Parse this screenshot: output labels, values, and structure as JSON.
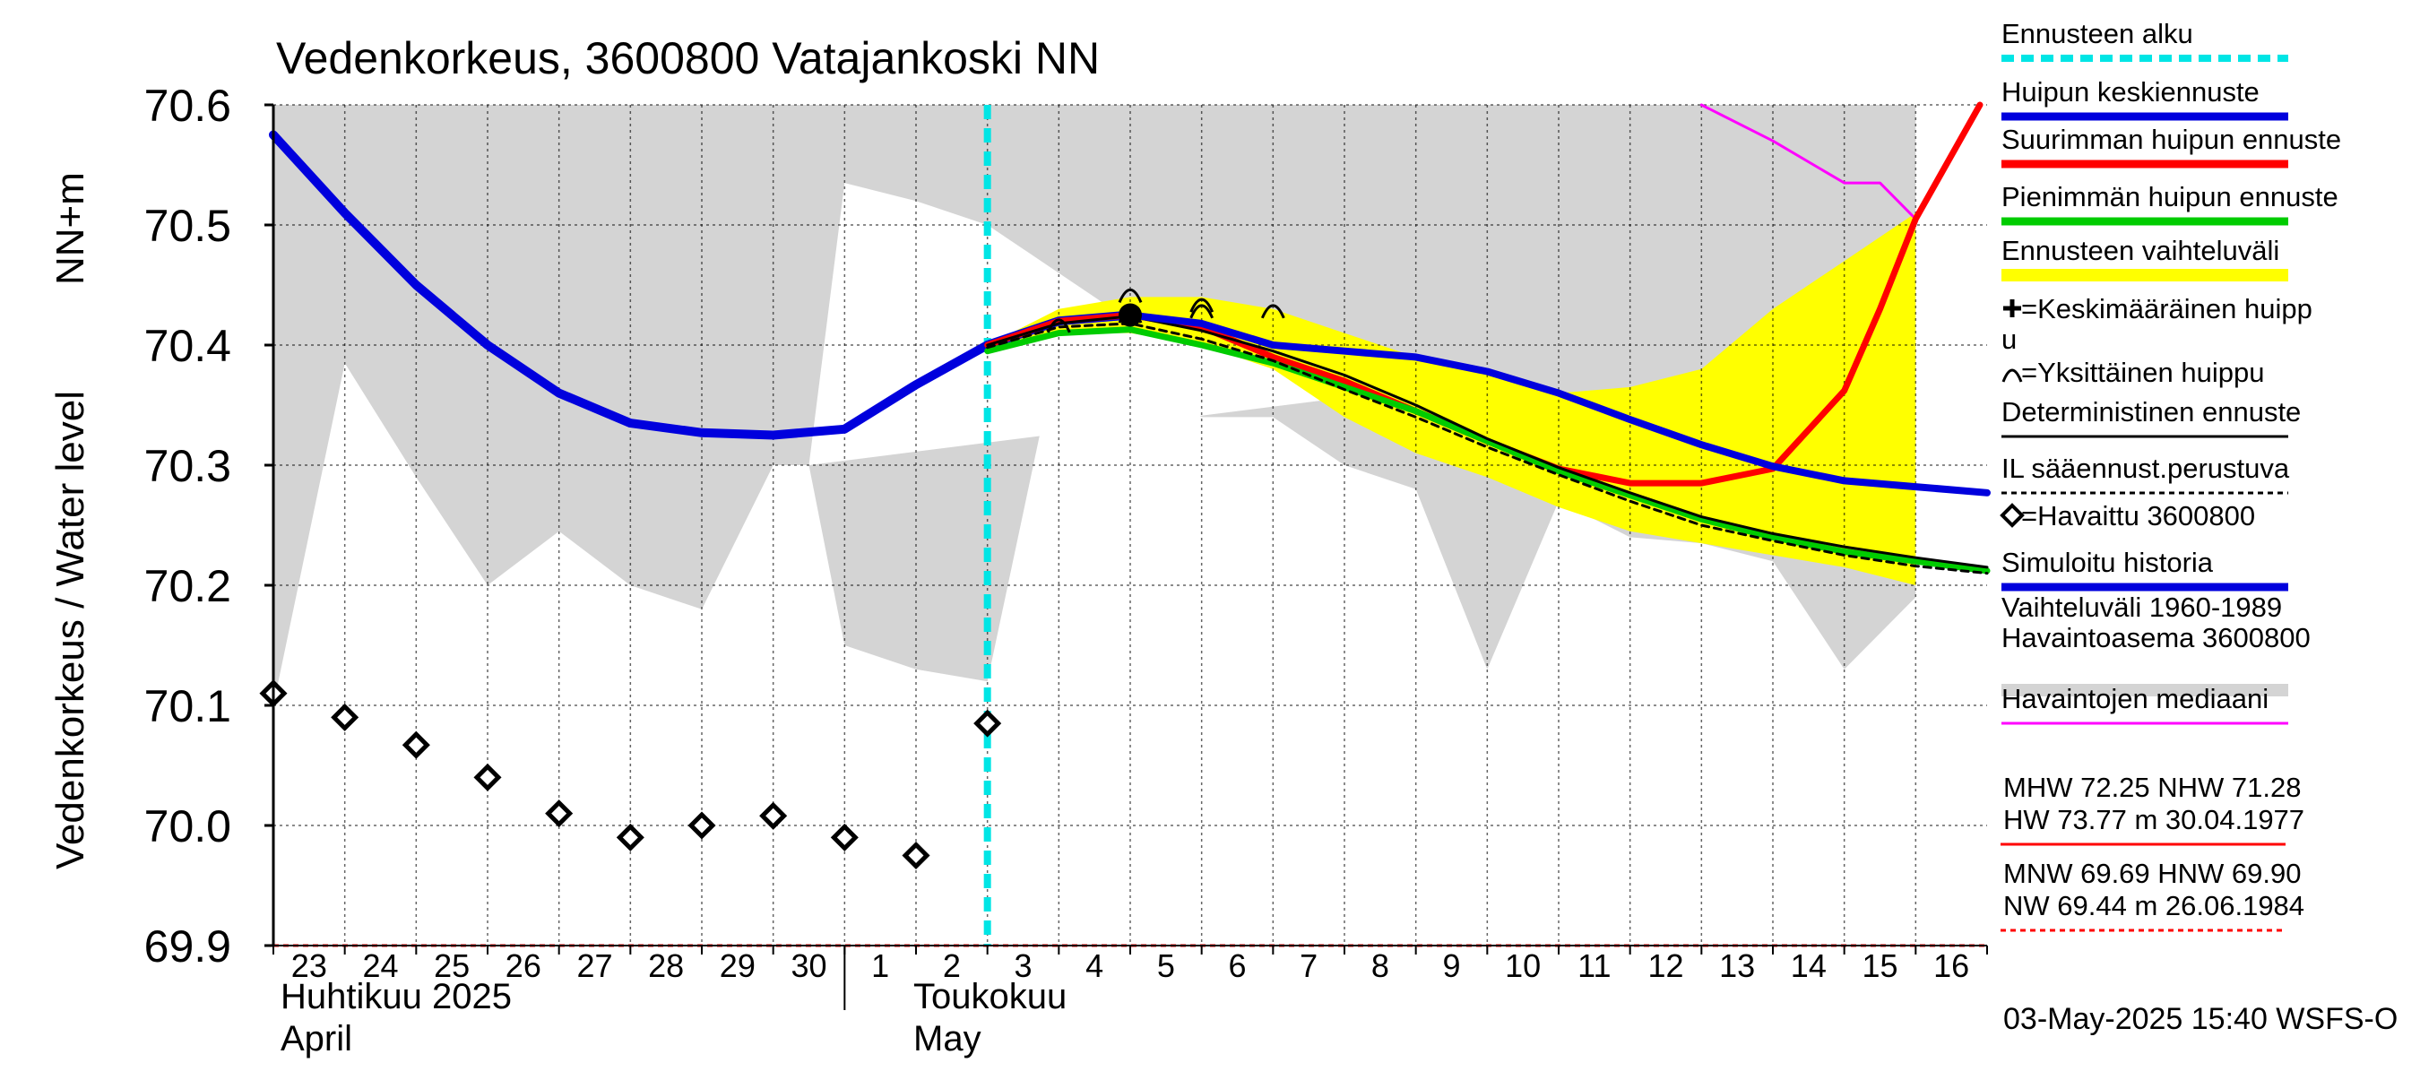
{
  "chart_data": {
    "type": "line",
    "title": "Vedenkorkeus, 3600800 Vatajankoski NN",
    "ylabel_left": "Vedenkorkeus / Water level",
    "ylabel_unit": "NN+m",
    "ylim": [
      69.9,
      70.6
    ],
    "y_ticks": [
      69.9,
      70.0,
      70.1,
      70.2,
      70.3,
      70.4,
      70.5,
      70.6
    ],
    "y_tick_labels": [
      "69.9",
      "70.0",
      "70.1",
      "70.2",
      "70.3",
      "70.4",
      "70.5",
      "70.6"
    ],
    "x_tick_labels": [
      "23",
      "24",
      "25",
      "26",
      "27",
      "28",
      "29",
      "30",
      "1",
      "2",
      "3",
      "4",
      "5",
      "6",
      "7",
      "8",
      "9",
      "10",
      "11",
      "12",
      "13",
      "14",
      "15",
      "16"
    ],
    "month_labels": [
      {
        "line1": "Huhtikuu  2025",
        "line2": "April"
      },
      {
        "line1": "Toukokuu",
        "line2": "May"
      }
    ],
    "forecast_start_day": 10,
    "grid": true,
    "legend_position": "right",
    "series": [
      {
        "name": "Vaihteluväli 1960-1989",
        "kind": "band",
        "color": "#d4d4d4",
        "upper": [
          [
            0,
            70.6
          ],
          [
            23,
            70.6
          ]
        ],
        "lower": [
          [
            0,
            70.1
          ],
          [
            1,
            70.385
          ],
          [
            2,
            70.29
          ],
          [
            3,
            70.2
          ],
          [
            4,
            70.245
          ],
          [
            5,
            70.2
          ],
          [
            6,
            70.18
          ],
          [
            7,
            70.3
          ],
          [
            7.5,
            70.3
          ],
          [
            8,
            70.15
          ],
          [
            9,
            70.13
          ],
          [
            10,
            70.12
          ],
          [
            11,
            70.4
          ],
          [
            12,
            70.38
          ],
          [
            13,
            70.34
          ],
          [
            14,
            70.34
          ],
          [
            15,
            70.3
          ],
          [
            16,
            70.28
          ],
          [
            17,
            70.13
          ],
          [
            18,
            70.27
          ],
          [
            19,
            70.24
          ],
          [
            20,
            70.235
          ],
          [
            21,
            70.22
          ],
          [
            22,
            70.13
          ],
          [
            23,
            70.19
          ]
        ]
      },
      {
        "name": "Vaihteluväli (white gap)",
        "kind": "band_gap",
        "color": "#ffffff",
        "upper": [
          [
            7.5,
            70.3
          ],
          [
            8,
            70.535
          ],
          [
            9,
            70.52
          ],
          [
            10,
            70.5
          ],
          [
            11,
            70.46
          ],
          [
            12,
            70.42
          ],
          [
            13,
            70.41
          ],
          [
            14,
            70.41
          ],
          [
            15,
            70.37
          ],
          [
            15.5,
            70.36
          ]
        ],
        "lower": [
          [
            7.5,
            70.3
          ],
          [
            15.5,
            70.36
          ]
        ]
      },
      {
        "name": "Ennusteen vaihteluväli",
        "kind": "band",
        "color": "#ffff00",
        "upper": [
          [
            10,
            70.4
          ],
          [
            11,
            70.43
          ],
          [
            12,
            70.44
          ],
          [
            13,
            70.44
          ],
          [
            14,
            70.43
          ],
          [
            15,
            70.41
          ],
          [
            16,
            70.39
          ],
          [
            17,
            70.375
          ],
          [
            18,
            70.36
          ],
          [
            19,
            70.365
          ],
          [
            20,
            70.38
          ],
          [
            21,
            70.43
          ],
          [
            22,
            70.47
          ],
          [
            23,
            70.51
          ]
        ],
        "lower": [
          [
            10,
            70.395
          ],
          [
            11,
            70.41
          ],
          [
            12,
            70.41
          ],
          [
            13,
            70.4
          ],
          [
            14,
            70.38
          ],
          [
            15,
            70.34
          ],
          [
            16,
            70.31
          ],
          [
            17,
            70.29
          ],
          [
            18,
            70.265
          ],
          [
            19,
            70.245
          ],
          [
            20,
            70.235
          ],
          [
            21,
            70.225
          ],
          [
            22,
            70.215
          ],
          [
            23,
            70.2
          ]
        ]
      },
      {
        "name": "Havaintojen mediaani",
        "kind": "line",
        "color": "#ff00ff",
        "width": 3,
        "points": [
          [
            20,
            70.6
          ],
          [
            21,
            70.57
          ],
          [
            22,
            70.535
          ],
          [
            22.5,
            70.535
          ],
          [
            23,
            70.505
          ]
        ]
      },
      {
        "name": "Simuloitu historia",
        "kind": "line",
        "color": "#0000dd",
        "width": 10,
        "points": [
          [
            0,
            70.575
          ],
          [
            1,
            70.51
          ],
          [
            2,
            70.45
          ],
          [
            3,
            70.4
          ],
          [
            4,
            70.36
          ],
          [
            5,
            70.335
          ],
          [
            6,
            70.327
          ],
          [
            7,
            70.325
          ],
          [
            8,
            70.33
          ],
          [
            9,
            70.367
          ],
          [
            10,
            70.4
          ],
          [
            11,
            70.42
          ],
          [
            12,
            70.425
          ]
        ]
      },
      {
        "name": "Suurimman huipun ennuste",
        "kind": "line",
        "color": "#ff0000",
        "width": 7,
        "points": [
          [
            10,
            70.4
          ],
          [
            11,
            70.42
          ],
          [
            12,
            70.425
          ],
          [
            13,
            70.415
          ],
          [
            14,
            70.39
          ],
          [
            15,
            70.37
          ],
          [
            16,
            70.345
          ],
          [
            17,
            70.32
          ],
          [
            18,
            70.297
          ],
          [
            19,
            70.285
          ],
          [
            20,
            70.285
          ],
          [
            21,
            70.297
          ],
          [
            22,
            70.362
          ],
          [
            22.5,
            70.43
          ],
          [
            23,
            70.505
          ],
          [
            23.9,
            70.6
          ]
        ]
      },
      {
        "name": "Pienimmän huipun ennuste",
        "kind": "line",
        "color": "#00cc00",
        "width": 7,
        "points": [
          [
            10,
            70.395
          ],
          [
            11,
            70.41
          ],
          [
            12,
            70.413
          ],
          [
            13,
            70.4
          ],
          [
            14,
            70.385
          ],
          [
            15,
            70.365
          ],
          [
            16,
            70.345
          ],
          [
            17,
            70.32
          ],
          [
            18,
            70.295
          ],
          [
            19,
            70.275
          ],
          [
            20,
            70.255
          ],
          [
            21,
            70.24
          ],
          [
            22,
            70.228
          ],
          [
            23,
            70.22
          ],
          [
            24,
            70.212
          ]
        ]
      },
      {
        "name": "IL sääennust.perustuva",
        "kind": "line",
        "color": "#000000",
        "width": 3,
        "dash": "8,6",
        "points": [
          [
            10,
            70.398
          ],
          [
            11,
            70.415
          ],
          [
            12,
            70.418
          ],
          [
            13,
            70.405
          ],
          [
            14,
            70.387
          ],
          [
            15,
            70.363
          ],
          [
            16,
            70.34
          ],
          [
            17,
            70.315
          ],
          [
            18,
            70.292
          ],
          [
            19,
            70.27
          ],
          [
            20,
            70.25
          ],
          [
            21,
            70.237
          ],
          [
            22,
            70.225
          ],
          [
            23,
            70.216
          ],
          [
            24,
            70.21
          ]
        ]
      },
      {
        "name": "Deterministinen ennuste",
        "kind": "line",
        "color": "#000000",
        "width": 3,
        "points": [
          [
            10,
            70.4
          ],
          [
            11,
            70.418
          ],
          [
            12,
            70.424
          ],
          [
            13,
            70.412
          ],
          [
            14,
            70.395
          ],
          [
            15,
            70.375
          ],
          [
            16,
            70.35
          ],
          [
            17,
            70.322
          ],
          [
            18,
            70.298
          ],
          [
            19,
            70.277
          ],
          [
            20,
            70.257
          ],
          [
            21,
            70.243
          ],
          [
            22,
            70.232
          ],
          [
            23,
            70.223
          ],
          [
            24,
            70.215
          ]
        ]
      },
      {
        "name": "Huipun keskiennuste",
        "kind": "line",
        "color": "#0000dd",
        "width": 8,
        "points": [
          [
            12,
            70.425
          ],
          [
            13,
            70.418
          ],
          [
            14,
            70.4
          ],
          [
            15,
            70.395
          ],
          [
            16,
            70.39
          ],
          [
            17,
            70.378
          ],
          [
            18,
            70.36
          ],
          [
            19,
            70.338
          ],
          [
            20,
            70.317
          ],
          [
            21,
            70.299
          ],
          [
            22,
            70.287
          ],
          [
            23,
            70.282
          ],
          [
            24,
            70.277
          ]
        ]
      },
      {
        "name": "Havaittu 3600800",
        "kind": "markers",
        "marker": "diamond",
        "color": "#000000",
        "points": [
          [
            0,
            70.11
          ],
          [
            1,
            70.09
          ],
          [
            2,
            70.067
          ],
          [
            3,
            70.04
          ],
          [
            4,
            70.01
          ],
          [
            5,
            69.99
          ],
          [
            6,
            70.0
          ],
          [
            7,
            70.008
          ],
          [
            8,
            69.99
          ],
          [
            9,
            69.975
          ],
          [
            10,
            70.085
          ]
        ]
      },
      {
        "name": "Yksittäinen huippu",
        "kind": "markers",
        "marker": "arc",
        "color": "#000000",
        "points": [
          [
            12,
            70.44
          ],
          [
            12,
            70.423
          ],
          [
            13,
            70.432
          ],
          [
            13,
            70.427
          ],
          [
            14,
            70.427
          ],
          [
            11,
            70.415
          ]
        ]
      },
      {
        "name": "Keskimääräinen huippu",
        "kind": "markers",
        "marker": "blob",
        "color": "#000000",
        "points": [
          [
            12,
            70.425
          ]
        ]
      }
    ],
    "legend": {
      "entries": [
        {
          "label": "Ennusteen alku",
          "swatch": "dashed",
          "color": "#00e5e5"
        },
        {
          "label": "Huipun keskiennuste",
          "swatch": "thick",
          "color": "#0000dd"
        },
        {
          "label": "Suurimman huipun ennuste",
          "swatch": "thick",
          "color": "#ff0000"
        },
        {
          "label": "Pienimmän huipun ennuste",
          "swatch": "thick",
          "color": "#00cc00"
        },
        {
          "label": "Ennusteen vaihteluväli",
          "swatch": "band",
          "color": "#ffff00"
        },
        {
          "label": "=Keskimääräinen huipp",
          "label2": "u",
          "swatch": "plus",
          "color": "#000000"
        },
        {
          "label": "=Yksittäinen huippu",
          "swatch": "arc",
          "color": "#000000"
        },
        {
          "label": "Deterministinen ennuste",
          "swatch": "thin",
          "color": "#000000"
        },
        {
          "label": "IL sääennust.perustuva",
          "swatch": "dotted",
          "color": "#000000"
        },
        {
          "label": "=Havaittu 3600800",
          "swatch": "diamond",
          "color": "#000000"
        },
        {
          "label": "Simuloitu historia",
          "swatch": "thick",
          "color": "#0000dd"
        },
        {
          "label": "Vaihteluväli 1960-1989",
          "label2": " Havaintoasema 3600800",
          "swatch": "grayband",
          "color": "#d4d4d4"
        },
        {
          "label": "Havaintojen mediaani",
          "swatch": "thin",
          "color": "#ff00ff"
        }
      ]
    },
    "stats": {
      "line1": "MHW  72.25 NHW  71.28",
      "line2": "HW  73.77 m 30.04.1977",
      "line3": "MNW  69.69 HNW  69.90",
      "line4": "NW  69.44 m 26.06.1984",
      "hw_color": "#ff0000",
      "nw_color": "#ff0000"
    },
    "timestamp": "03-May-2025 15:40 WSFS-O"
  }
}
